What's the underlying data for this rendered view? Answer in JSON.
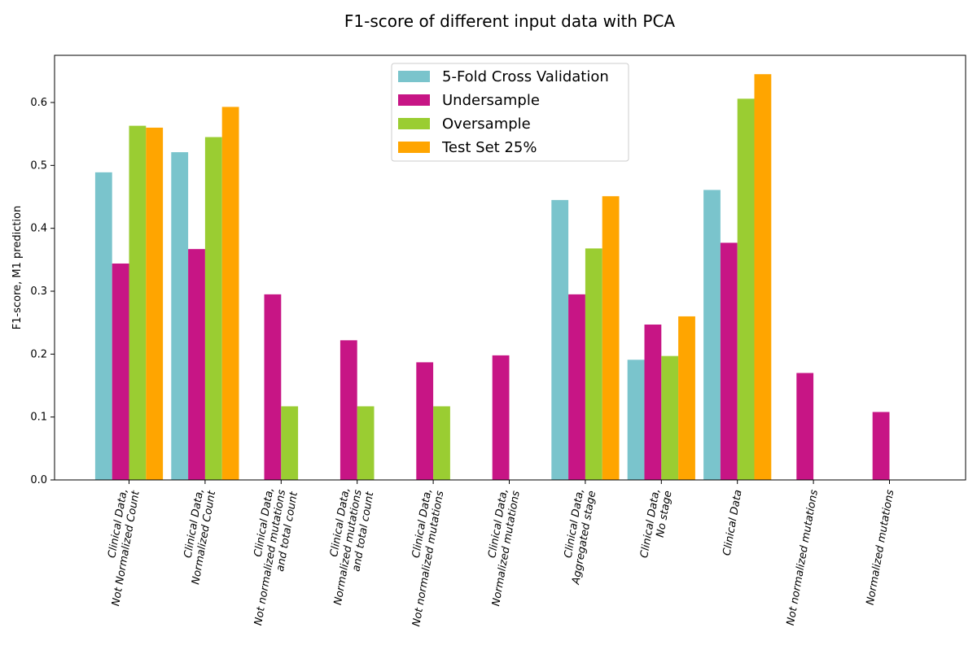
{
  "chart_data": {
    "type": "bar",
    "title": "F1-score of different input data with PCA",
    "ylabel": "F1-score, M1 prediction",
    "xlabel": "",
    "ylim": [
      0,
      0.675
    ],
    "yticks": [
      0.0,
      0.1,
      0.2,
      0.3,
      0.4,
      0.5,
      0.6
    ],
    "ytick_labels": [
      "0.0",
      "0.1",
      "0.2",
      "0.3",
      "0.4",
      "0.5",
      "0.6"
    ],
    "legend_position": "top-center",
    "categories": [
      [
        "Clinical Data,",
        "Not Normalized Count"
      ],
      [
        "Clinical Data,",
        "Normalized Count"
      ],
      [
        "Clinical Data,",
        "Not normalized mutations",
        "and total count"
      ],
      [
        "Clinical Data,",
        "Normalized mutations",
        "and total count"
      ],
      [
        "Clinical Data,",
        "Not normalized mutations"
      ],
      [
        "Clinical Data,",
        "Normalized mutations"
      ],
      [
        "Clinical Data,",
        "Aggregated stage"
      ],
      [
        "Clinical Data,",
        "No stage"
      ],
      [
        "Clinical Data"
      ],
      [
        "Not normalized mutations"
      ],
      [
        "Normalized mutations"
      ]
    ],
    "series": [
      {
        "name": "5-Fold Cross Validation",
        "color": "#7ac4cc",
        "values": [
          0.489,
          0.521,
          0,
          0,
          0,
          0,
          0.445,
          0.191,
          0.461,
          0,
          0
        ]
      },
      {
        "name": "Undersample",
        "color": "#c71585",
        "values": [
          0.344,
          0.367,
          0.295,
          0.222,
          0.187,
          0.198,
          0.295,
          0.247,
          0.377,
          0.17,
          0.108
        ]
      },
      {
        "name": "Oversample",
        "color": "#9acd32",
        "values": [
          0.563,
          0.545,
          0.117,
          0.117,
          0.117,
          0,
          0.368,
          0.197,
          0.606,
          0,
          0
        ]
      },
      {
        "name": "Test Set 25%",
        "color": "#ffa500",
        "values": [
          0.56,
          0.593,
          0,
          0,
          0,
          0,
          0.451,
          0.26,
          0.645,
          0,
          0
        ]
      }
    ]
  }
}
